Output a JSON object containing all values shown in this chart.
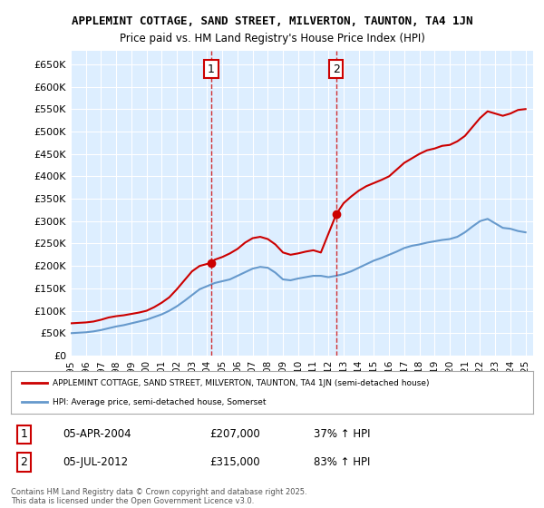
{
  "title1": "APPLEMINT COTTAGE, SAND STREET, MILVERTON, TAUNTON, TA4 1JN",
  "title2": "Price paid vs. HM Land Registry's House Price Index (HPI)",
  "ylim": [
    0,
    680000
  ],
  "yticks": [
    0,
    50000,
    100000,
    150000,
    200000,
    250000,
    300000,
    350000,
    400000,
    450000,
    500000,
    550000,
    600000,
    650000
  ],
  "ytick_labels": [
    "£0",
    "£50K",
    "£100K",
    "£150K",
    "£200K",
    "£250K",
    "£300K",
    "£350K",
    "£400K",
    "£450K",
    "£500K",
    "£550K",
    "£600K",
    "£650K"
  ],
  "xlim_start": 1995,
  "xlim_end": 2025.5,
  "vline1_x": 2004.27,
  "vline2_x": 2012.51,
  "marker1_label": "1",
  "marker2_label": "2",
  "transaction1_date": "05-APR-2004",
  "transaction1_price": "£207,000",
  "transaction1_hpi": "37% ↑ HPI",
  "transaction2_date": "05-JUL-2012",
  "transaction2_price": "£315,000",
  "transaction2_hpi": "83% ↑ HPI",
  "legend1_label": "APPLEMINT COTTAGE, SAND STREET, MILVERTON, TAUNTON, TA4 1JN (semi-detached house)",
  "legend2_label": "HPI: Average price, semi-detached house, Somerset",
  "footer": "Contains HM Land Registry data © Crown copyright and database right 2025.\nThis data is licensed under the Open Government Licence v3.0.",
  "red_color": "#cc0000",
  "blue_color": "#6699cc",
  "bg_color": "#ddeeff",
  "grid_color": "#ffffff",
  "plot_bg": "#ddeeff",
  "red_line": {
    "x": [
      1995.0,
      1995.5,
      1996.0,
      1996.5,
      1997.0,
      1997.5,
      1998.0,
      1998.5,
      1999.0,
      1999.5,
      2000.0,
      2000.5,
      2001.0,
      2001.5,
      2002.0,
      2002.5,
      2003.0,
      2003.5,
      2004.27,
      2004.5,
      2005.0,
      2005.5,
      2006.0,
      2006.5,
      2007.0,
      2007.5,
      2008.0,
      2008.5,
      2009.0,
      2009.5,
      2010.0,
      2010.5,
      2011.0,
      2011.5,
      2012.51,
      2012.8,
      2013.0,
      2013.5,
      2014.0,
      2014.5,
      2015.0,
      2015.5,
      2016.0,
      2016.5,
      2017.0,
      2017.5,
      2018.0,
      2018.5,
      2019.0,
      2019.5,
      2020.0,
      2020.5,
      2021.0,
      2021.5,
      2022.0,
      2022.5,
      2023.0,
      2023.5,
      2024.0,
      2024.5,
      2025.0
    ],
    "y": [
      72000,
      73000,
      74000,
      76000,
      80000,
      85000,
      88000,
      90000,
      93000,
      96000,
      100000,
      108000,
      118000,
      130000,
      148000,
      168000,
      188000,
      200000,
      207000,
      214000,
      220000,
      228000,
      238000,
      252000,
      262000,
      265000,
      260000,
      248000,
      230000,
      225000,
      228000,
      232000,
      235000,
      230000,
      315000,
      330000,
      340000,
      355000,
      368000,
      378000,
      385000,
      392000,
      400000,
      415000,
      430000,
      440000,
      450000,
      458000,
      462000,
      468000,
      470000,
      478000,
      490000,
      510000,
      530000,
      545000,
      540000,
      535000,
      540000,
      548000,
      550000
    ]
  },
  "blue_line": {
    "x": [
      1995.0,
      1995.5,
      1996.0,
      1996.5,
      1997.0,
      1997.5,
      1998.0,
      1998.5,
      1999.0,
      1999.5,
      2000.0,
      2000.5,
      2001.0,
      2001.5,
      2002.0,
      2002.5,
      2003.0,
      2003.5,
      2004.0,
      2004.5,
      2005.0,
      2005.5,
      2006.0,
      2006.5,
      2007.0,
      2007.5,
      2008.0,
      2008.5,
      2009.0,
      2009.5,
      2010.0,
      2010.5,
      2011.0,
      2011.5,
      2012.0,
      2012.5,
      2013.0,
      2013.5,
      2014.0,
      2014.5,
      2015.0,
      2015.5,
      2016.0,
      2016.5,
      2017.0,
      2017.5,
      2018.0,
      2018.5,
      2019.0,
      2019.5,
      2020.0,
      2020.5,
      2021.0,
      2021.5,
      2022.0,
      2022.5,
      2023.0,
      2023.5,
      2024.0,
      2024.5,
      2025.0
    ],
    "y": [
      50000,
      51000,
      52000,
      54000,
      57000,
      61000,
      65000,
      68000,
      72000,
      76000,
      80000,
      86000,
      92000,
      100000,
      110000,
      122000,
      135000,
      148000,
      155000,
      162000,
      166000,
      170000,
      178000,
      186000,
      194000,
      198000,
      196000,
      185000,
      170000,
      168000,
      172000,
      175000,
      178000,
      178000,
      175000,
      178000,
      182000,
      188000,
      196000,
      204000,
      212000,
      218000,
      225000,
      232000,
      240000,
      245000,
      248000,
      252000,
      255000,
      258000,
      260000,
      265000,
      275000,
      288000,
      300000,
      305000,
      295000,
      285000,
      283000,
      278000,
      275000
    ]
  }
}
